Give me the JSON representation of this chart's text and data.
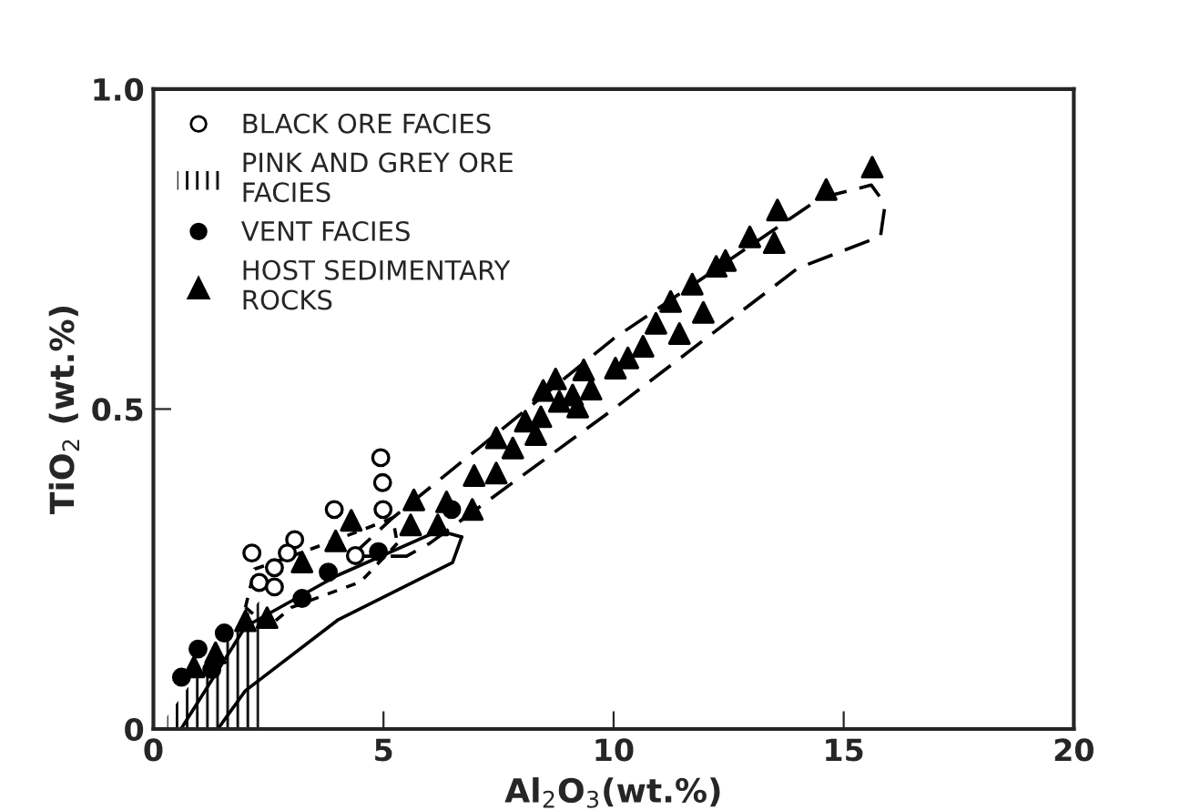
{
  "chart_data": {
    "type": "scatter",
    "xlabel": "Al$_{2}$O$_{3}$(wt.%)",
    "ylabel": "TiO$_{2}$ (wt.%)",
    "xlim": [
      0,
      20
    ],
    "xticks": [
      0,
      5,
      10,
      15,
      20
    ],
    "ylim": [
      0,
      1
    ],
    "yticks": [
      0,
      {
        "value": 0.5,
        "label": "0.5"
      },
      {
        "value": 1,
        "label": "1.0"
      }
    ],
    "grid": false,
    "legend": "top left",
    "series": [
      {
        "name": "BLACK ORE FACIES",
        "type": "scatter",
        "marker": "circle",
        "color": "#ffffff",
        "x": [
          2.14,
          3.07,
          2.91,
          2.63,
          2.3,
          2.63,
          3.93,
          4.99,
          4.39,
          4.94,
          4.98
        ],
        "values": [
          0.275,
          0.296,
          0.275,
          0.252,
          0.229,
          0.222,
          0.343,
          0.343,
          0.271,
          0.424,
          0.385
        ]
      },
      {
        "name": "PINK AND GREY ORE\nFACIES",
        "type": "area",
        "color": "#000000",
        "x": [
          0.3,
          0.8,
          1.3,
          1.8,
          2.3
        ],
        "values": [
          0.02,
          0.07,
          0.12,
          0.16,
          0.2
        ]
      },
      {
        "name": "VENT FACIES",
        "type": "scatter",
        "marker": "circle",
        "color": "#000000",
        "x": [
          0.61,
          1.27,
          0.97,
          1.54,
          3.23,
          3.8,
          4.89,
          6.48
        ],
        "values": [
          0.081,
          0.093,
          0.125,
          0.15,
          0.204,
          0.245,
          0.277,
          0.343
        ]
      },
      {
        "name": "HOST SEDIMENTARY\nROCKS",
        "type": "scatter",
        "marker": "triangle",
        "color": "#000000",
        "x": [
          0.88,
          1.35,
          2.0,
          2.47,
          3.23,
          3.96,
          4.3,
          5.59,
          5.66,
          6.18,
          6.37,
          6.93,
          6.97,
          7.45,
          7.45,
          7.81,
          8.08,
          8.42,
          8.31,
          8.47,
          8.74,
          8.82,
          9.11,
          9.22,
          9.35,
          9.51,
          10.04,
          10.31,
          10.64,
          10.92,
          11.24,
          11.43,
          11.71,
          11.95,
          12.23,
          12.43,
          12.96,
          13.49,
          13.56,
          14.62,
          15.62
        ],
        "values": [
          0.097,
          0.119,
          0.169,
          0.174,
          0.261,
          0.294,
          0.326,
          0.319,
          0.358,
          0.319,
          0.355,
          0.343,
          0.396,
          0.4,
          0.455,
          0.439,
          0.481,
          0.488,
          0.46,
          0.529,
          0.547,
          0.512,
          0.522,
          0.503,
          0.561,
          0.531,
          0.564,
          0.58,
          0.598,
          0.634,
          0.668,
          0.618,
          0.695,
          0.651,
          0.723,
          0.732,
          0.769,
          0.76,
          0.811,
          0.843,
          0.878
        ]
      },
      {
        "type": "line",
        "line_style": "dashed",
        "color": "#000000",
        "x": [
          4.3,
          5.2,
          10,
          14.5,
          15.6,
          15.9
        ],
        "values": [
          0.27,
          0.33,
          0.61,
          0.83,
          0.85,
          0.82
        ]
      },
      {
        "type": "line",
        "line_style": "dashed",
        "color": "#000000",
        "x": [
          4.3,
          5.5,
          6,
          10,
          14,
          15.8,
          15.9
        ],
        "values": [
          0.27,
          0.27,
          0.29,
          0.5,
          0.72,
          0.77,
          0.82
        ]
      },
      {
        "type": "line",
        "line_style": "solid",
        "color": "#000000",
        "x": [
          0.6,
          2,
          4,
          6.2,
          6.7
        ],
        "values": [
          0.0,
          0.16,
          0.24,
          0.31,
          0.3
        ]
      },
      {
        "type": "line",
        "line_style": "solid",
        "color": "#000000",
        "x": [
          0.6,
          1.4,
          2,
          4,
          6.5,
          6.7
        ],
        "values": [
          0.0,
          0.0,
          0.06,
          0.17,
          0.26,
          0.3
        ]
      },
      {
        "type": "line",
        "line_style": "dotted",
        "color": "#000000",
        "x": [
          2,
          2.2,
          3,
          4.5,
          5.2,
          5.3
        ],
        "values": [
          0.19,
          0.25,
          0.27,
          0.31,
          0.33,
          0.29
        ]
      },
      {
        "type": "line",
        "line_style": "dotted",
        "color": "#000000",
        "x": [
          2,
          2.5,
          3,
          4.5,
          5.3
        ],
        "values": [
          0.19,
          0.16,
          0.19,
          0.23,
          0.29
        ]
      }
    ]
  }
}
